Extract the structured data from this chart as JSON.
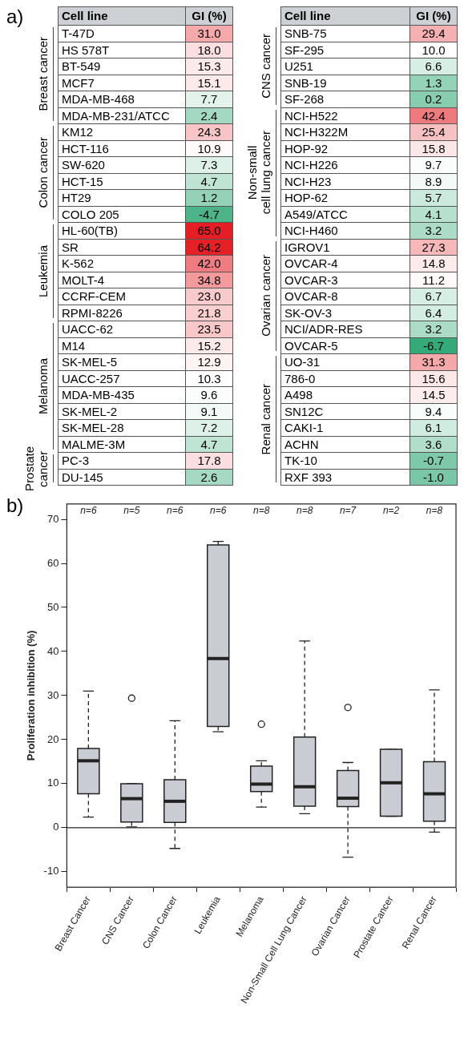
{
  "chart_data": [
    {
      "type": "heatmap",
      "title": "a)",
      "ylabel": "Cell line",
      "categories": [
        "GI (%)"
      ],
      "y_categories": [
        "T-47D",
        "HS 578T",
        "BT-549",
        "MCF7",
        "MDA-MB-468",
        "MDA-MB-231/ATCC",
        "KM12",
        "HCT-116",
        "SW-620",
        "HCT-15",
        "HT29",
        "COLO 205",
        "HL-60(TB)",
        "SR",
        "K-562",
        "MOLT-4",
        "CCRF-CEM",
        "RPMI-8226",
        "UACC-62",
        "M14",
        "SK-MEL-5",
        "UACC-257",
        "MDA-MB-435",
        "SK-MEL-2",
        "SK-MEL-28",
        "MALME-3M",
        "PC-3",
        "DU-145"
      ],
      "cells": [
        [
          31.0
        ],
        [
          18.0
        ],
        [
          15.3
        ],
        [
          15.1
        ],
        [
          7.7
        ],
        [
          2.4
        ],
        [
          24.3
        ],
        [
          10.9
        ],
        [
          7.3
        ],
        [
          4.7
        ],
        [
          1.2
        ],
        [
          -4.7
        ],
        [
          65.0
        ],
        [
          64.2
        ],
        [
          42.0
        ],
        [
          34.8
        ],
        [
          23.0
        ],
        [
          21.8
        ],
        [
          23.5
        ],
        [
          15.2
        ],
        [
          12.9
        ],
        [
          10.3
        ],
        [
          9.6
        ],
        [
          9.1
        ],
        [
          7.2
        ],
        [
          4.7
        ],
        [
          17.8
        ],
        [
          2.6
        ]
      ],
      "cell_labels": [
        [
          "31.0"
        ],
        [
          "18.0"
        ],
        [
          "15.3"
        ],
        [
          "15.1"
        ],
        [
          "7.7"
        ],
        [
          "2.4"
        ],
        [
          "24.3"
        ],
        [
          "10.9"
        ],
        [
          "7.3"
        ],
        [
          "4.7"
        ],
        [
          "1.2"
        ],
        [
          "-4.7"
        ],
        [
          "65.0"
        ],
        [
          "64.2"
        ],
        [
          "42.0"
        ],
        [
          "34.8"
        ],
        [
          "23.0"
        ],
        [
          "21.8"
        ],
        [
          "23.5"
        ],
        [
          "15.2"
        ],
        [
          "12.9"
        ],
        [
          "10.3"
        ],
        [
          "9.6"
        ],
        [
          "9.1"
        ],
        [
          "7.2"
        ],
        [
          "4.7"
        ],
        [
          "17.8"
        ],
        [
          "2.6"
        ]
      ],
      "annotations": [
        "Breast cancer",
        "Colon cancer",
        "Leukemia",
        "Melanoma",
        "Prostate\ncancer"
      ]
    },
    {
      "type": "heatmap",
      "ylabel": "Cell line",
      "categories": [
        "GI (%)"
      ],
      "y_categories": [
        "SNB-75",
        "SF-295",
        "U251",
        "SNB-19",
        "SF-268",
        "NCI-H522",
        "NCI-H322M",
        "HOP-92",
        "NCI-H226",
        "NCI-H23",
        "HOP-62",
        "A549/ATCC",
        "NCI-H460",
        "IGROV1",
        "OVCAR-4",
        "OVCAR-3",
        "OVCAR-8",
        "SK-OV-3",
        "NCI/ADR-RES",
        "OVCAR-5",
        "UO-31",
        "786-0",
        "A498",
        "SN12C",
        "CAKI-1",
        "ACHN",
        "TK-10",
        "RXF 393"
      ],
      "cells": [
        [
          29.4
        ],
        [
          10.0
        ],
        [
          6.6
        ],
        [
          1.3
        ],
        [
          0.2
        ],
        [
          42.4
        ],
        [
          25.4
        ],
        [
          15.8
        ],
        [
          9.7
        ],
        [
          8.9
        ],
        [
          5.7
        ],
        [
          4.1
        ],
        [
          3.2
        ],
        [
          27.3
        ],
        [
          14.8
        ],
        [
          11.2
        ],
        [
          6.7
        ],
        [
          6.4
        ],
        [
          3.2
        ],
        [
          -6.7
        ],
        [
          31.3
        ],
        [
          15.6
        ],
        [
          14.5
        ],
        [
          9.4
        ],
        [
          6.1
        ],
        [
          3.6
        ],
        [
          -0.7
        ],
        [
          -1.0
        ]
      ],
      "cell_labels": [
        [
          "29.4"
        ],
        [
          "10.0"
        ],
        [
          "6.6"
        ],
        [
          "1.3"
        ],
        [
          "0.2"
        ],
        [
          "42.4"
        ],
        [
          "25.4"
        ],
        [
          "15.8"
        ],
        [
          "9.7"
        ],
        [
          "8.9"
        ],
        [
          "5.7"
        ],
        [
          "4.1"
        ],
        [
          "3.2"
        ],
        [
          "27.3"
        ],
        [
          "14.8"
        ],
        [
          "11.2"
        ],
        [
          "6.7"
        ],
        [
          "6.4"
        ],
        [
          "3.2"
        ],
        [
          "-6.7"
        ],
        [
          "31.3"
        ],
        [
          "15.6"
        ],
        [
          "14.5"
        ],
        [
          "9.4"
        ],
        [
          "6.1"
        ],
        [
          "3.6"
        ],
        [
          "-0.7"
        ],
        [
          "-1.0"
        ]
      ],
      "annotations": [
        "CNS cancer",
        "Non-small\ncell lung cancer",
        "Ovarian cancer",
        "Renal cancer"
      ]
    },
    {
      "type": "box",
      "title": "b)",
      "ylabel": "Proliferation inhibition (%)",
      "categories": [
        "Breast Cancer",
        "CNS Cancer",
        "Colon Cancer",
        "Leukemia",
        "Melanoma",
        "Non-Small Cell Lung Cancer",
        "Ovarian Cancer",
        "Prostate Cancer",
        "Renal Cancer"
      ],
      "boxes": [
        {
          "low": 2.4,
          "q1": 7.7,
          "median": 15.2,
          "q3": 18.0,
          "high": 31.0
        },
        {
          "low": 0.2,
          "q1": 1.3,
          "median": 6.6,
          "q3": 10.0,
          "high": 10.0,
          "outliers": [
            29.4
          ]
        },
        {
          "low": -4.7,
          "q1": 1.2,
          "median": 6.0,
          "q3": 10.9,
          "high": 24.3
        },
        {
          "low": 21.8,
          "q1": 23.0,
          "median": 38.4,
          "q3": 64.2,
          "high": 65.0
        },
        {
          "low": 4.7,
          "q1": 8.2,
          "median": 9.9,
          "q3": 14.0,
          "high": 15.2,
          "outliers": [
            23.5
          ]
        },
        {
          "low": 3.2,
          "q1": 4.9,
          "median": 9.3,
          "q3": 20.6,
          "high": 42.4
        },
        {
          "low": -6.7,
          "q1": 4.8,
          "median": 6.7,
          "q3": 13.0,
          "high": 14.8,
          "outliers": [
            27.3
          ]
        },
        {
          "low": 2.6,
          "q1": 2.6,
          "median": 10.2,
          "q3": 17.8,
          "high": 17.8
        },
        {
          "low": -1.0,
          "q1": 1.5,
          "median": 7.7,
          "q3": 15.0,
          "high": 31.3
        }
      ],
      "ylim": [
        -13.5,
        73.5
      ],
      "yticks": [
        -10,
        0,
        10,
        20,
        30,
        40,
        50,
        60,
        70
      ],
      "ref_lines": [
        {
          "axis": "y",
          "value": 0
        }
      ],
      "annotations": [
        "n=6",
        "n=5",
        "n=6",
        "n=6",
        "n=8",
        "n=8",
        "n=7",
        "n=2",
        "n=8"
      ]
    }
  ]
}
